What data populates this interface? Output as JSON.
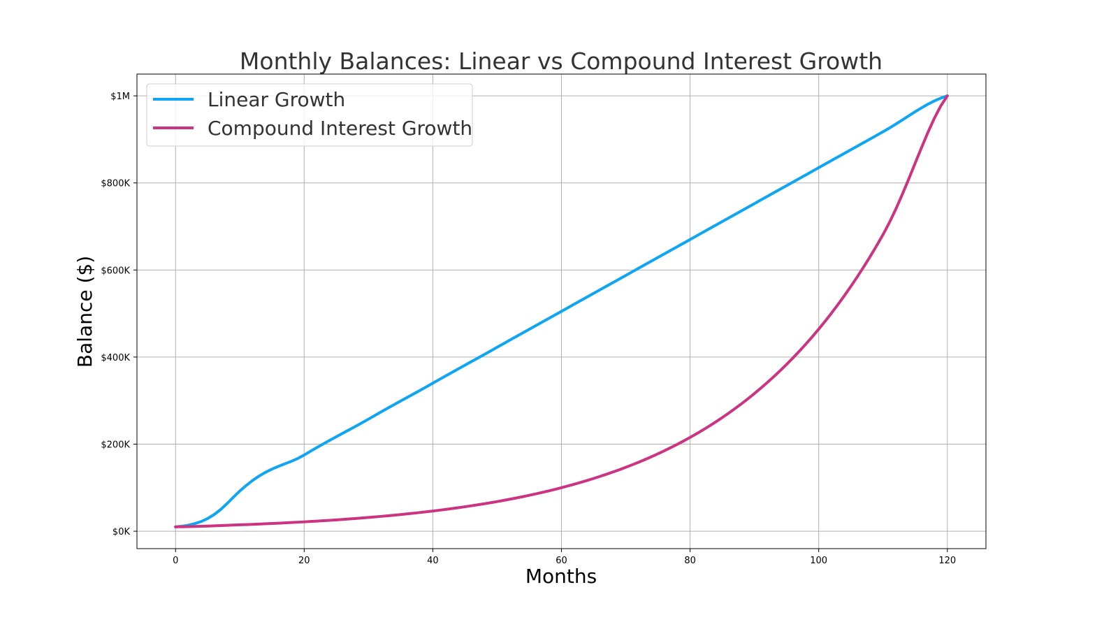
{
  "chart_data": {
    "type": "line",
    "title": "Monthly Balances: Linear vs Compound Interest Growth",
    "xlabel": "Months",
    "ylabel": "Balance ($)",
    "xlim": [
      -6,
      126
    ],
    "ylim": [
      -40000,
      1050000
    ],
    "x_ticks": [
      0,
      20,
      40,
      60,
      80,
      100,
      120
    ],
    "x_tick_labels": [
      "0",
      "20",
      "40",
      "60",
      "80",
      "100",
      "120"
    ],
    "y_ticks": [
      0,
      200000,
      400000,
      600000,
      800000,
      1000000
    ],
    "y_tick_labels": [
      "$0K",
      "$200K",
      "$400K",
      "$600K",
      "$800K",
      "$1M"
    ],
    "grid": true,
    "legend_position": "upper-left",
    "series": [
      {
        "name": "Linear Growth",
        "color": "#0ea5f5",
        "x": [
          0,
          10,
          20,
          30,
          40,
          50,
          60,
          70,
          80,
          90,
          100,
          110,
          120
        ],
        "values": [
          10000,
          92500,
          175000,
          257500,
          340000,
          422500,
          505000,
          587500,
          670000,
          752500,
          835000,
          917500,
          1000000
        ]
      },
      {
        "name": "Compound Interest Growth",
        "color": "#cc3380",
        "x": [
          0,
          10,
          20,
          30,
          40,
          50,
          60,
          70,
          80,
          90,
          100,
          110,
          120
        ],
        "values": [
          10000,
          14700,
          21500,
          31600,
          46400,
          68100,
          100000,
          146800,
          215400,
          316200,
          464200,
          681300,
          1000000
        ]
      }
    ]
  }
}
